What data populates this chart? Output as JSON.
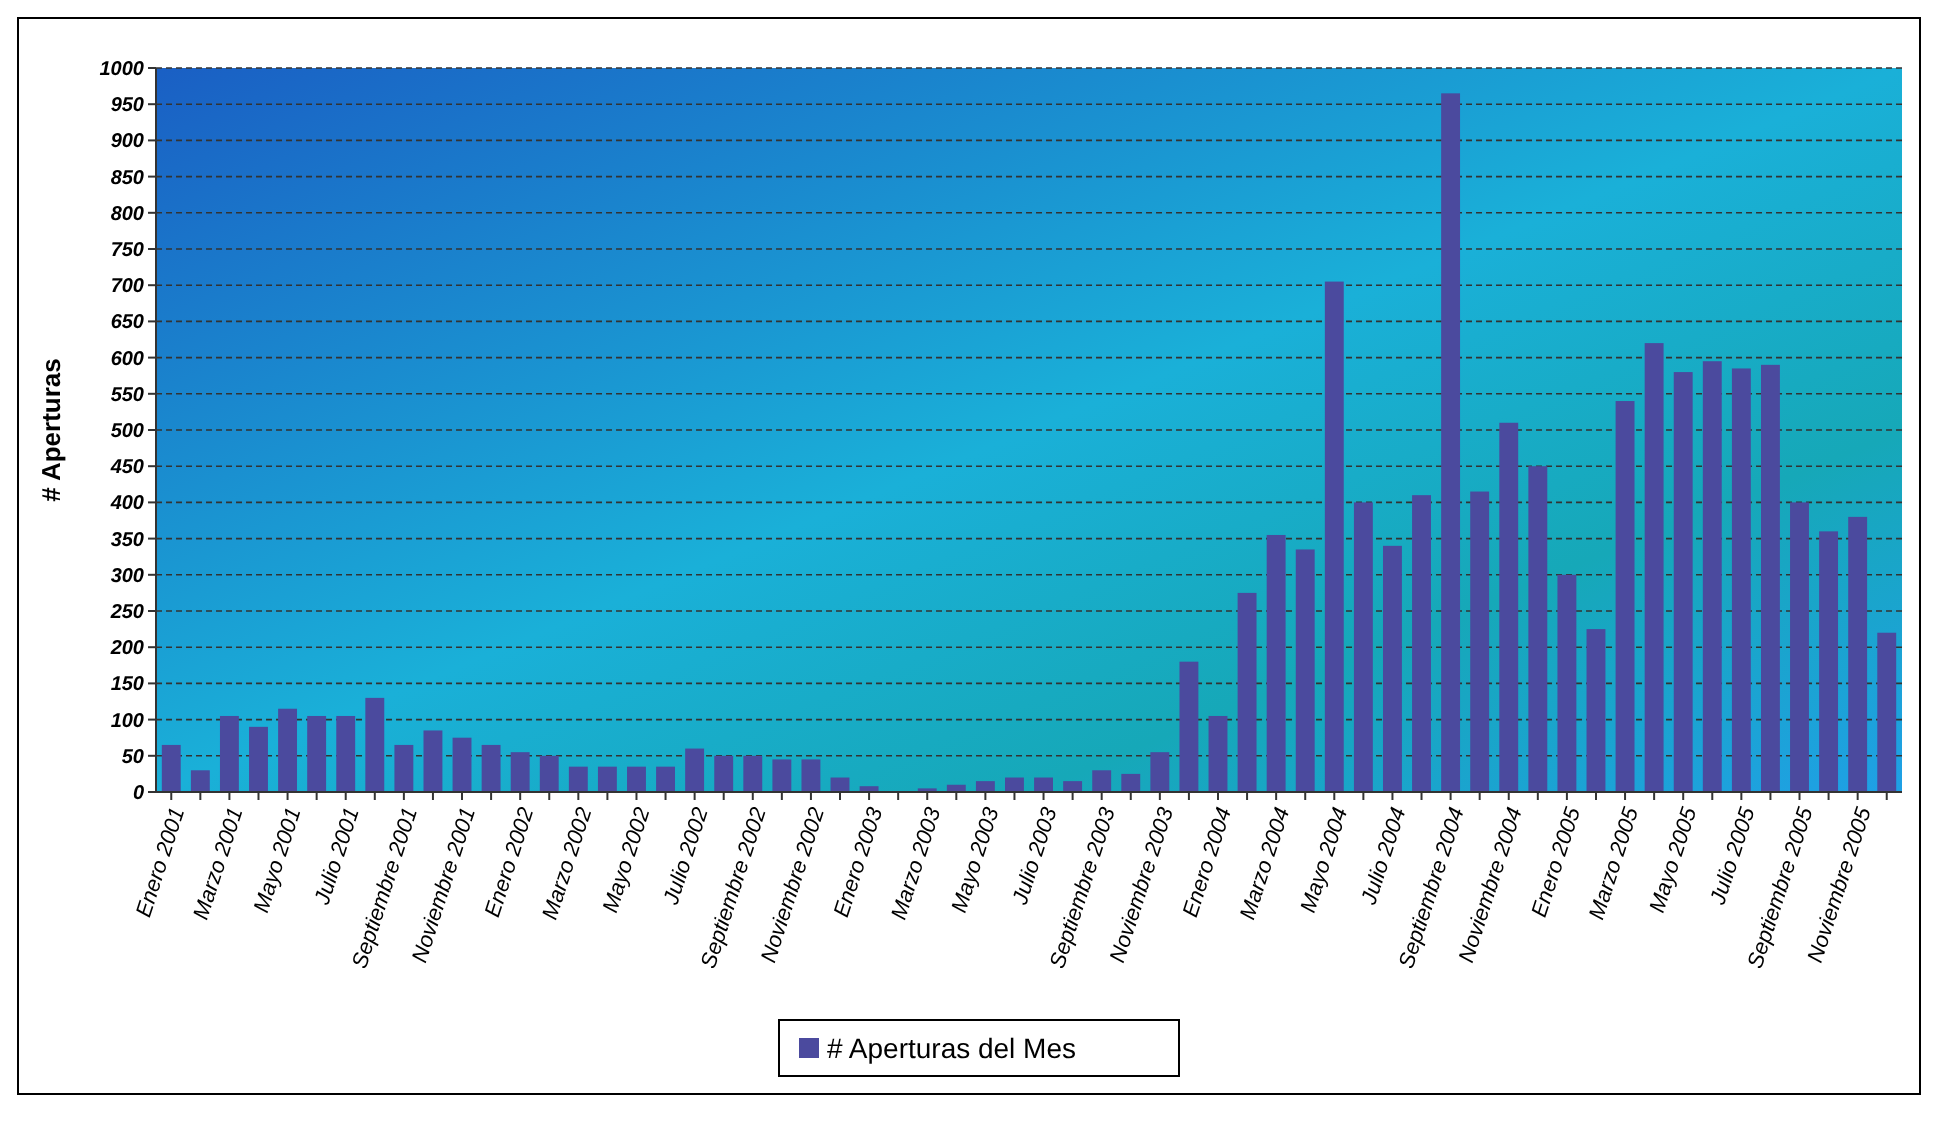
{
  "chart_data": {
    "type": "bar",
    "ylabel": "# Aperturas",
    "categories": [
      "Enero 2001",
      null,
      "Marzo 2001",
      null,
      "Mayo 2001",
      null,
      "Julio 2001",
      null,
      "Septiembre 2001",
      null,
      "Noviembre 2001",
      null,
      "Enero 2002",
      null,
      "Marzo 2002",
      null,
      "Mayo 2002",
      null,
      "Julio 2002",
      null,
      "Septiembre 2002",
      null,
      "Noviembre 2002",
      null,
      "Enero 2003",
      null,
      "Marzo 2003",
      null,
      "Mayo 2003",
      null,
      "Julio 2003",
      null,
      "Septiembre 2003",
      null,
      "Noviembre 2003",
      null,
      "Enero 2004",
      null,
      "Marzo 2004",
      null,
      "Mayo 2004",
      null,
      "Julio 2004",
      null,
      "Septiembre 2004",
      null,
      "Noviembre 2004",
      null,
      "Enero 2005",
      null,
      "Marzo 2005",
      null,
      "Mayo 2005",
      null,
      "Julio 2005",
      null,
      "Septiembre 2005",
      null,
      "Noviembre 2005",
      null
    ],
    "series": [
      {
        "name": "# Aperturas del Mes",
        "color": "#4b4a9e",
        "values": [
          65,
          30,
          105,
          90,
          115,
          105,
          105,
          130,
          65,
          85,
          75,
          65,
          55,
          50,
          35,
          35,
          35,
          35,
          60,
          50,
          50,
          45,
          45,
          20,
          8,
          0,
          5,
          10,
          15,
          20,
          20,
          15,
          30,
          25,
          55,
          180,
          105,
          275,
          355,
          335,
          705,
          400,
          340,
          410,
          965,
          415,
          510,
          450,
          300,
          225,
          540,
          620,
          580,
          595,
          585,
          590,
          400,
          360,
          380,
          220
        ]
      }
    ],
    "ylim": [
      0,
      1000
    ],
    "yticks": [
      0,
      50,
      100,
      150,
      200,
      250,
      300,
      350,
      400,
      450,
      500,
      550,
      600,
      650,
      700,
      750,
      800,
      850,
      900,
      950,
      1000
    ],
    "grid": "y",
    "legend": "bottom"
  }
}
